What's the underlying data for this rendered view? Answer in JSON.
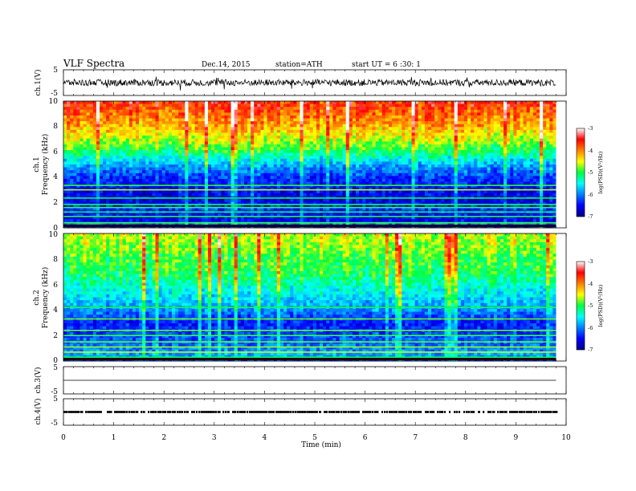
{
  "header": {
    "title": "VLF Spectra",
    "date": "Dec.14, 2015",
    "station": "station=ATH",
    "start": "start UT = 6 :30: 1"
  },
  "chart_data": [
    {
      "type": "line",
      "name": "waveform-ch1",
      "ylabel": "ch.1(V)",
      "ylim": [
        -5,
        5
      ],
      "yticks": [
        "5",
        "-5"
      ],
      "x": [
        0,
        9.8
      ],
      "y_baseline": 0,
      "noise_amplitude": 1.3
    },
    {
      "type": "heatmap",
      "name": "spectrogram-ch1",
      "ylabel": "ch.1",
      "ylabel2": "Frequency (kHz)",
      "xlim": [
        0,
        10
      ],
      "ylim": [
        0,
        10
      ],
      "yticks": [
        "10",
        "8",
        "6",
        "4",
        "2",
        "0"
      ],
      "data_xmax": 9.8,
      "colorbar": {
        "label": "log(PSD)(V²/Hz)",
        "range": [
          -7,
          -3
        ],
        "ticks": [
          "-3",
          "-4",
          "-5",
          "-6",
          "-7"
        ]
      },
      "level_profile_by_khz": [
        [
          0,
          -6.3
        ],
        [
          0.3,
          -6.0
        ],
        [
          0.6,
          -6.6
        ],
        [
          1.0,
          -6.5
        ],
        [
          1.5,
          -6.3
        ],
        [
          2.0,
          -6.6
        ],
        [
          3.0,
          -6.5
        ],
        [
          4.0,
          -6.3
        ],
        [
          5.0,
          -5.8
        ],
        [
          6.0,
          -5.1
        ],
        [
          7.0,
          -4.6
        ],
        [
          8.0,
          -4.2
        ],
        [
          9.0,
          -3.9
        ],
        [
          10.0,
          -3.6
        ]
      ],
      "bright_lines_khz": [
        0.4,
        0.9,
        1.25,
        1.6,
        1.85,
        2.35,
        3.0,
        3.35
      ]
    },
    {
      "type": "heatmap",
      "name": "spectrogram-ch2",
      "ylabel": "ch.2",
      "ylabel2": "Frequency (kHz)",
      "xlim": [
        0,
        10
      ],
      "ylim": [
        0,
        10
      ],
      "yticks": [
        "10",
        "8",
        "6",
        "4",
        "2",
        "0"
      ],
      "data_xmax": 9.8,
      "colorbar": {
        "label": "log(PSD)(V²/Hz)",
        "range": [
          -7,
          -3
        ],
        "ticks": [
          "-3",
          "-4",
          "-5",
          "-6",
          "-7"
        ]
      },
      "level_profile_by_khz": [
        [
          0,
          -6.2
        ],
        [
          0.5,
          -5.8
        ],
        [
          1.0,
          -6.0
        ],
        [
          2.0,
          -6.2
        ],
        [
          3.0,
          -6.4
        ],
        [
          4.0,
          -5.9
        ],
        [
          5.0,
          -5.6
        ],
        [
          6.0,
          -5.3
        ],
        [
          7.0,
          -5.0
        ],
        [
          8.0,
          -4.9
        ],
        [
          9.0,
          -4.7
        ],
        [
          10.0,
          -4.6
        ]
      ],
      "bright_lines_khz": [
        0.3,
        0.7,
        1.1,
        1.5,
        2.0,
        2.4,
        3.3,
        4.2
      ]
    },
    {
      "type": "line",
      "name": "waveform-ch3",
      "ylabel": "ch.3(V)",
      "ylim": [
        -5,
        5
      ],
      "yticks": [
        "5",
        "-5"
      ],
      "x": [
        0,
        9.8
      ],
      "y_baseline": 0,
      "noise_amplitude": 0
    },
    {
      "type": "line",
      "name": "waveform-ch4",
      "ylabel": "ch.4(V)",
      "ylim": [
        -5,
        5
      ],
      "yticks": [
        "5",
        "-5"
      ],
      "x": [
        0,
        9.8
      ],
      "y_baseline": 0,
      "noise_amplitude": 0.4
    }
  ],
  "xaxis": {
    "label": "Time (min)",
    "ticks": [
      "0",
      "1",
      "2",
      "3",
      "4",
      "5",
      "6",
      "7",
      "8",
      "9",
      "10"
    ]
  }
}
